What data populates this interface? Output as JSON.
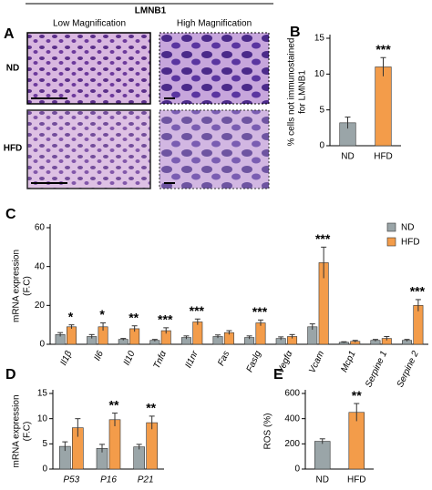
{
  "panel_a": {
    "letter": "A",
    "header": "LMNB1",
    "columns": [
      "Low Magnification",
      "High Magnification"
    ],
    "rows": [
      "ND",
      "HFD"
    ]
  },
  "chart_data": [
    {
      "type": "bar",
      "panel": "B",
      "ylabel": [
        "% cells not immunostained",
        "for LMNB1"
      ],
      "categories": [
        "ND",
        "HFD"
      ],
      "values": [
        3.2,
        11
      ],
      "errors": [
        0.8,
        1.3
      ],
      "colors": [
        "#9aa5a8",
        "#f39c4a"
      ],
      "stars": [
        null,
        "***"
      ],
      "ylim": [
        0,
        15
      ],
      "yticks": [
        0,
        5,
        10,
        15
      ]
    },
    {
      "type": "bar",
      "panel": "C",
      "ylabel": [
        "mRNA expression",
        "(F.C)"
      ],
      "italic_categories": true,
      "rotate_categories": true,
      "legend": "upper right",
      "categories": [
        "Il1β",
        "Il6",
        "Il10",
        "Tnfα",
        "Il1nr",
        "Fas",
        "Faslg",
        "Vegfα",
        "Vcam",
        "Mcp1",
        "Serpine 1",
        "Serpine 2"
      ],
      "series": [
        {
          "name": "ND",
          "color": "#9aa5a8",
          "values": [
            5,
            4,
            2.5,
            2,
            3.5,
            4,
            3.5,
            3,
            9,
            1,
            2,
            2
          ],
          "errors": [
            1,
            1,
            0.5,
            0.5,
            0.8,
            0.8,
            0.8,
            0.8,
            1.5,
            0.3,
            0.5,
            0.5
          ]
        },
        {
          "name": "HFD",
          "color": "#f39c4a",
          "values": [
            9,
            9,
            8,
            7,
            11.5,
            6,
            11,
            4,
            42,
            1.5,
            3,
            20
          ],
          "errors": [
            1,
            2,
            1.5,
            1.5,
            1.5,
            1,
            1.5,
            1,
            8,
            0.5,
            1,
            3
          ]
        }
      ],
      "stars": [
        "*",
        "*",
        "**",
        "***",
        "***",
        null,
        "***",
        null,
        "***",
        null,
        null,
        "***"
      ],
      "ylim": [
        0,
        60
      ],
      "yticks": [
        0,
        20,
        40,
        60
      ]
    },
    {
      "type": "bar",
      "panel": "D",
      "ylabel": [
        "mRNA expression",
        "(F.C)"
      ],
      "italic_categories": true,
      "categories": [
        "P53",
        "P16",
        "P21"
      ],
      "series": [
        {
          "name": "ND",
          "color": "#9aa5a8",
          "values": [
            4.5,
            4.1,
            4.4
          ],
          "errors": [
            0.9,
            0.8,
            0.5
          ]
        },
        {
          "name": "HFD",
          "color": "#f39c4a",
          "values": [
            8.2,
            9.8,
            9.2
          ],
          "errors": [
            1.8,
            1.3,
            1.3
          ]
        }
      ],
      "stars": [
        null,
        "**",
        "**"
      ],
      "ylim": [
        0,
        15
      ],
      "yticks": [
        0,
        5,
        10,
        15
      ]
    },
    {
      "type": "bar",
      "panel": "E",
      "ylabel": "ROS (%)",
      "categories": [
        "ND",
        "HFD"
      ],
      "values": [
        220,
        450
      ],
      "errors": [
        20,
        70
      ],
      "colors": [
        "#9aa5a8",
        "#f39c4a"
      ],
      "stars": [
        null,
        "**"
      ],
      "ylim": [
        0,
        600
      ],
      "yticks": [
        0,
        200,
        400,
        600
      ]
    }
  ]
}
